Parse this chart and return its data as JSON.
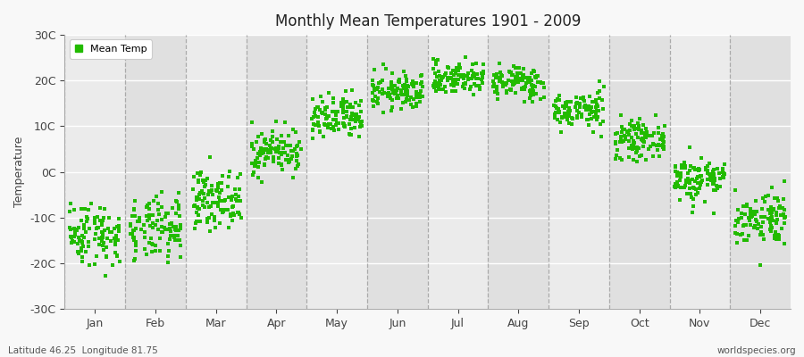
{
  "title": "Monthly Mean Temperatures 1901 - 2009",
  "ylabel": "Temperature",
  "footer_left": "Latitude 46.25  Longitude 81.75",
  "footer_right": "worldspecies.org",
  "legend_label": "Mean Temp",
  "ylim": [
    -30,
    30
  ],
  "ytick_values": [
    -30,
    -20,
    -10,
    0,
    10,
    20,
    30
  ],
  "ytick_labels": [
    "-30C",
    "-20C",
    "-10C",
    "0C",
    "10C",
    "20C",
    "30C"
  ],
  "months": [
    "Jan",
    "Feb",
    "Mar",
    "Apr",
    "May",
    "Jun",
    "Jul",
    "Aug",
    "Sep",
    "Oct",
    "Nov",
    "Dec"
  ],
  "dot_color": "#22bb00",
  "bg_color": "#ebebeb",
  "bg_alt_color": "#e0e0e0",
  "bg_white": "#f8f8f8",
  "mean_by_month": [
    -13.5,
    -12.8,
    -6.0,
    4.5,
    11.5,
    17.5,
    20.5,
    19.5,
    13.5,
    7.0,
    -1.5,
    -10.0
  ],
  "std_by_month": [
    3.5,
    3.5,
    3.0,
    2.5,
    2.5,
    2.0,
    1.8,
    1.8,
    2.0,
    2.0,
    2.5,
    3.0
  ],
  "n_years": 109,
  "seed": 42
}
